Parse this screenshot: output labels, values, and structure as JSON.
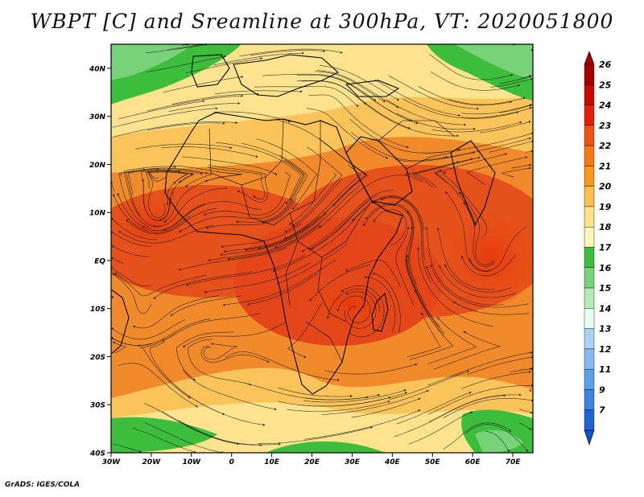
{
  "title": "WBPT [C] and Sreamline at 300hPa, VT: 2020051800",
  "footer": "GrADS: IGES/COLA",
  "map": {
    "lon_range": [
      -30,
      75
    ],
    "lat_range": [
      -40,
      45
    ],
    "lat_ticks": [
      {
        "value": 40,
        "label": "40N"
      },
      {
        "value": 30,
        "label": "30N"
      },
      {
        "value": 20,
        "label": "20N"
      },
      {
        "value": 10,
        "label": "10N"
      },
      {
        "value": 0,
        "label": "EQ"
      },
      {
        "value": -10,
        "label": "10S"
      },
      {
        "value": -20,
        "label": "20S"
      },
      {
        "value": -30,
        "label": "30S"
      },
      {
        "value": -40,
        "label": "40S"
      }
    ],
    "lon_ticks": [
      {
        "value": -30,
        "label": "30W"
      },
      {
        "value": -20,
        "label": "20W"
      },
      {
        "value": -10,
        "label": "10W"
      },
      {
        "value": 0,
        "label": "0"
      },
      {
        "value": 10,
        "label": "10E"
      },
      {
        "value": 20,
        "label": "20E"
      },
      {
        "value": 30,
        "label": "30E"
      },
      {
        "value": 40,
        "label": "40E"
      },
      {
        "value": 50,
        "label": "50E"
      },
      {
        "value": 60,
        "label": "60E"
      },
      {
        "value": 70,
        "label": "70E"
      }
    ]
  },
  "colorbar": {
    "levels": [
      {
        "label": "26",
        "color": "#a50000"
      },
      {
        "label": "25",
        "color": "#c80a00"
      },
      {
        "label": "24",
        "color": "#e41e0a"
      },
      {
        "label": "23",
        "color": "#f0500f"
      },
      {
        "label": "22",
        "color": "#f57814"
      },
      {
        "label": "21",
        "color": "#f89619"
      },
      {
        "label": "20",
        "color": "#fbbe4b"
      },
      {
        "label": "19",
        "color": "#fde28c"
      },
      {
        "label": "18",
        "color": "#fff5b4"
      },
      {
        "label": "17",
        "color": "#3cbe3c"
      },
      {
        "label": "16",
        "color": "#78d278"
      },
      {
        "label": "15",
        "color": "#b4ebb4"
      },
      {
        "label": "14",
        "color": "#e6fff0"
      },
      {
        "label": "13",
        "color": "#aad2f5"
      },
      {
        "label": "12",
        "color": "#82b9f0"
      },
      {
        "label": "11",
        "color": "#5aa0ea"
      },
      {
        "label": "9",
        "color": "#3c82e1"
      },
      {
        "label": "7",
        "color": "#1e64d2"
      }
    ],
    "bottom_color": "#1450c8"
  }
}
